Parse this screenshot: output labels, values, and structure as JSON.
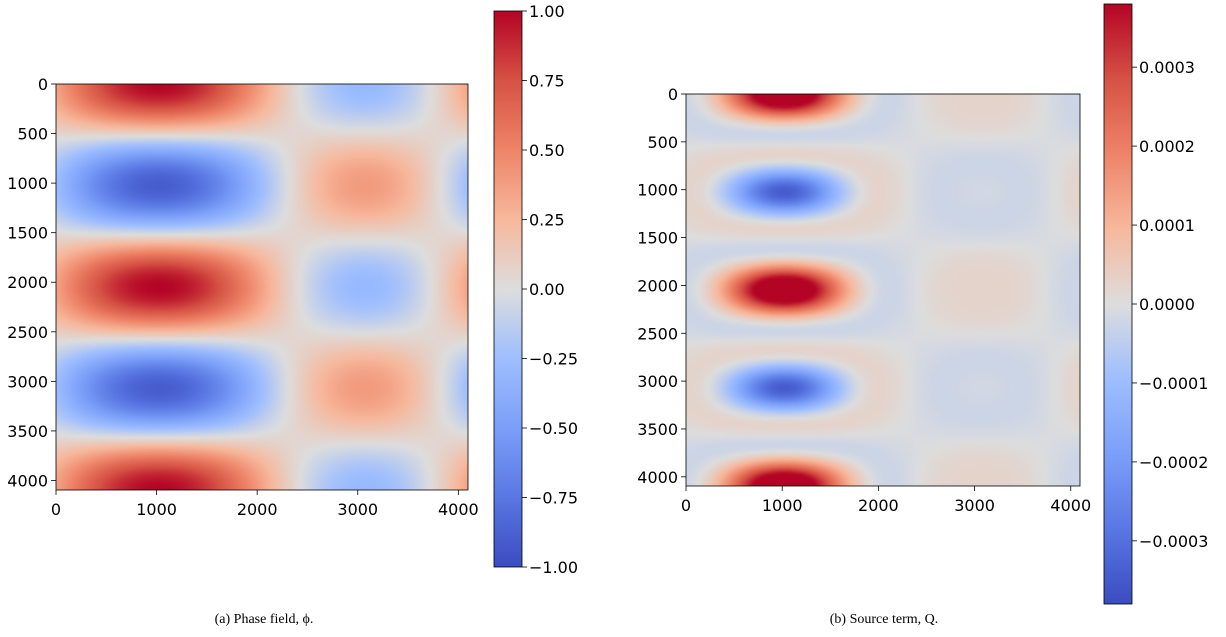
{
  "colors": {
    "cold": "#3b4cc0",
    "neutral": "#dddddd",
    "warm": "#b40426"
  },
  "chart_data": [
    {
      "type": "heatmap",
      "field": "phi",
      "caption": "(a) Phase field, ϕ.",
      "xlim": [
        0,
        4096
      ],
      "ylim": [
        4096,
        0
      ],
      "xticks": [
        "0",
        "1000",
        "2000",
        "3000",
        "4000"
      ],
      "yticks": [
        "0",
        "500",
        "1000",
        "1500",
        "2000",
        "2500",
        "3000",
        "3500",
        "4000"
      ],
      "colorbar": {
        "range": [
          -1.0,
          1.0
        ],
        "ticks": [
          {
            "value": 1.0,
            "label": "1.00"
          },
          {
            "value": 0.75,
            "label": "0.75"
          },
          {
            "value": 0.5,
            "label": "0.50"
          },
          {
            "value": 0.25,
            "label": "0.25"
          },
          {
            "value": 0.0,
            "label": "0.00"
          },
          {
            "value": -0.25,
            "label": "−0.25"
          },
          {
            "value": -0.5,
            "label": "−0.50"
          },
          {
            "value": -0.75,
            "label": "−0.75"
          },
          {
            "value": -1.0,
            "label": "−1.00"
          }
        ]
      }
    },
    {
      "type": "heatmap",
      "field": "Q",
      "caption": "(b) Source term, Q.",
      "xlim": [
        0,
        4096
      ],
      "ylim": [
        4096,
        0
      ],
      "xticks": [
        "0",
        "1000",
        "2000",
        "3000",
        "4000"
      ],
      "yticks": [
        "0",
        "500",
        "1000",
        "1500",
        "2000",
        "2500",
        "3000",
        "3500",
        "4000"
      ],
      "colorbar": {
        "range": [
          -0.00038,
          0.00038
        ],
        "ticks": [
          {
            "value": 0.0003,
            "label": "0.0003"
          },
          {
            "value": 0.0002,
            "label": "0.0002"
          },
          {
            "value": 0.0001,
            "label": "0.0001"
          },
          {
            "value": 0.0,
            "label": "0.0000"
          },
          {
            "value": -0.0001,
            "label": "−0.0001"
          },
          {
            "value": -0.0002,
            "label": "−0.0002"
          },
          {
            "value": -0.0003,
            "label": "−0.0003"
          }
        ]
      }
    }
  ]
}
